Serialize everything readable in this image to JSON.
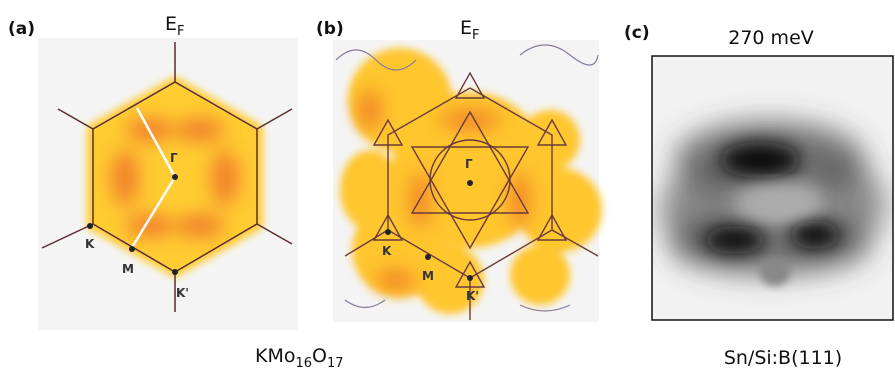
{
  "panels": [
    {
      "label": "(a)",
      "title": {
        "main": "E",
        "sub": "F"
      },
      "points": {
        "gamma": "Γ",
        "k": "K",
        "m": "M",
        "k_prime": "K'"
      }
    },
    {
      "label": "(b)",
      "title": {
        "main": "E",
        "sub": "F"
      },
      "points": {
        "gamma": "Γ",
        "k": "K",
        "m": "M",
        "k_prime": "K'"
      }
    },
    {
      "label": "(c)",
      "title": "270 meV"
    }
  ],
  "captions": [
    {
      "parts": [
        "KMo",
        "16",
        "O",
        "17"
      ]
    },
    {
      "text": "Sn/Si:B(111)"
    }
  ]
}
